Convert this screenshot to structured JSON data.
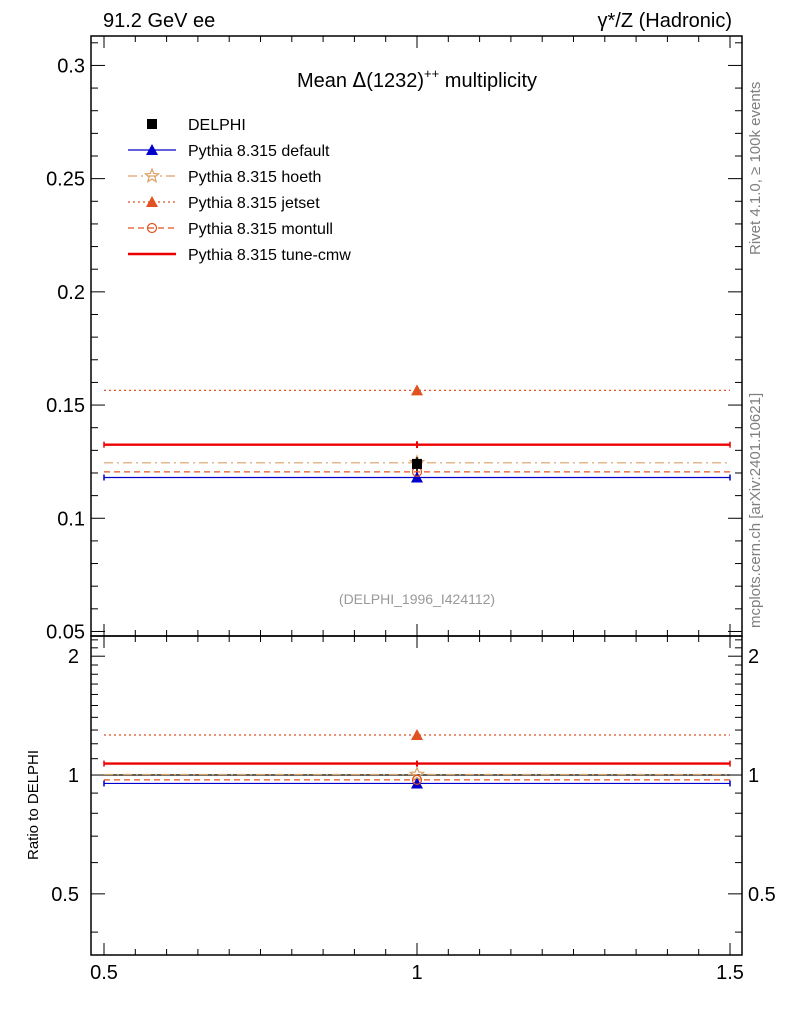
{
  "header": {
    "left": "91.2 GeV ee",
    "right": "γ*/Z (Hadronic)"
  },
  "side_labels": {
    "top": "Rivet 4.1.0, ≥ 100k events",
    "bottom": "mcplots.cern.ch [arXiv:2401.10621]"
  },
  "reference_tag": "(DELPHI_1996_I424112)",
  "ratio_ylabel": "Ratio to DELPHI",
  "chart_data": [
    {
      "type": "line",
      "panel": "main",
      "title_prefix": "Mean ",
      "title_symbol": "Δ",
      "title_mid": "(1232)",
      "title_sup": "++",
      "title_suffix": " multiplicity",
      "xlim": [
        0.5,
        1.5
      ],
      "ylim": [
        0.048,
        0.313
      ],
      "xticks": [
        0.5,
        1,
        1.5
      ],
      "xtick_labels": [
        "0.5",
        "1",
        "1.5"
      ],
      "yticks": [
        0.05,
        0.1,
        0.15,
        0.2,
        0.25,
        0.3
      ],
      "ytick_labels": [
        "0.05",
        "0.1",
        "0.15",
        "0.2",
        "0.25",
        "0.3"
      ],
      "legend_position": "top-left",
      "series": [
        {
          "name": "DELPHI",
          "style": "data",
          "color": "#000000",
          "marker": "square",
          "x": 1,
          "value": 0.124,
          "err": 0.003
        },
        {
          "name": "Pythia 8.315 default",
          "style": "solid",
          "color": "#0000cc",
          "marker": "triangle",
          "x": 1,
          "value": 0.118,
          "err": 0.001
        },
        {
          "name": "Pythia 8.315 hoeth",
          "style": "dashdot",
          "color": "#d9a066",
          "marker": "star",
          "x": 1,
          "value": 0.1245,
          "err": 0.001
        },
        {
          "name": "Pythia 8.315 jetset",
          "style": "dotted",
          "color": "#e0521f",
          "marker": "triangle",
          "x": 1,
          "value": 0.1565,
          "err": 0.001
        },
        {
          "name": "Pythia 8.315 montull",
          "style": "dashed",
          "color": "#e0521f",
          "marker": "circle",
          "x": 1,
          "value": 0.1205,
          "err": 0.001
        },
        {
          "name": "Pythia 8.315 tune-cmw",
          "style": "solid-thick",
          "color": "#ee0000",
          "marker": "none",
          "x": 1,
          "value": 0.1325,
          "err": 0.0015
        }
      ]
    },
    {
      "type": "line",
      "panel": "ratio",
      "ylabel": "Ratio to DELPHI",
      "xlim": [
        0.5,
        1.5
      ],
      "ylim": [
        0.35,
        2.25
      ],
      "yscale": "log",
      "xticks": [
        0.5,
        1,
        1.5
      ],
      "xtick_labels": [
        "0.5",
        "1",
        "1.5"
      ],
      "yticks": [
        0.5,
        1,
        2
      ],
      "ytick_labels": [
        "0.5",
        "1",
        "2"
      ],
      "reference_line": 1,
      "series": [
        {
          "name": "Pythia 8.315 default",
          "x": 1,
          "value": 0.952
        },
        {
          "name": "Pythia 8.315 hoeth",
          "x": 1,
          "value": 1.003
        },
        {
          "name": "Pythia 8.315 jetset",
          "x": 1,
          "value": 1.263
        },
        {
          "name": "Pythia 8.315 montull",
          "x": 1,
          "value": 0.972
        },
        {
          "name": "Pythia 8.315 tune-cmw",
          "x": 1,
          "value": 1.069
        }
      ]
    }
  ]
}
